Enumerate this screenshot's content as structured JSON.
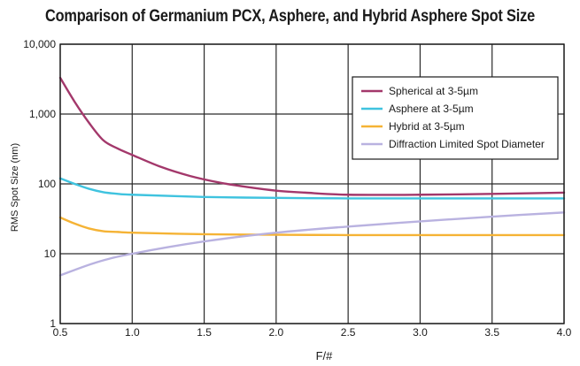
{
  "chart_data": {
    "type": "line",
    "title": "Comparison of Germanium PCX, Asphere, and Hybrid Asphere Spot Size",
    "xlabel": "F/#",
    "ylabel": "RMS Spot Size (nm)",
    "xlim": [
      0.5,
      4.0
    ],
    "ylim": [
      1,
      10000
    ],
    "yscale": "log",
    "grid": true,
    "legend_position": "top-right",
    "x_ticks": [
      "0.5",
      "1.0",
      "1.5",
      "2.0",
      "2.5",
      "3.0",
      "3.5",
      "4.0"
    ],
    "y_ticks": [
      "1",
      "10",
      "100",
      "1,000",
      "10,000"
    ],
    "series": [
      {
        "name": "Spherical at 3-5µm",
        "color": "#a3386b",
        "x": [
          0.5,
          0.6,
          0.7,
          0.8,
          0.9,
          1.0,
          1.2,
          1.4,
          1.6,
          1.8,
          2.0,
          2.2,
          2.5,
          3.0,
          3.5,
          4.0
        ],
        "y": [
          3300,
          1500,
          750,
          420,
          320,
          260,
          175,
          130,
          105,
          90,
          80,
          75,
          70,
          70,
          72,
          75
        ]
      },
      {
        "name": "Asphere at 3-5µm",
        "color": "#3fc3df",
        "x": [
          0.5,
          0.6,
          0.7,
          0.8,
          0.9,
          1.0,
          1.5,
          2.0,
          2.5,
          3.0,
          3.5,
          4.0
        ],
        "y": [
          120,
          100,
          85,
          76,
          72,
          70,
          65,
          63,
          62,
          62,
          62,
          62
        ]
      },
      {
        "name": "Hybrid at 3-5µm",
        "color": "#f5b335",
        "x": [
          0.5,
          0.6,
          0.7,
          0.8,
          0.9,
          1.0,
          1.5,
          2.0,
          2.5,
          3.0,
          3.5,
          4.0
        ],
        "y": [
          33,
          27,
          23,
          21,
          20.5,
          20,
          19,
          18.7,
          18.5,
          18.5,
          18.5,
          18.5
        ]
      },
      {
        "name": "Diffraction Limited Spot Diameter",
        "color": "#b9b2e0",
        "x": [
          0.5,
          0.75,
          1.0,
          1.5,
          2.0,
          2.5,
          3.0,
          3.5,
          4.0
        ],
        "y": [
          4.9,
          7.5,
          10,
          15,
          20,
          24.5,
          29,
          34,
          39
        ]
      }
    ]
  }
}
